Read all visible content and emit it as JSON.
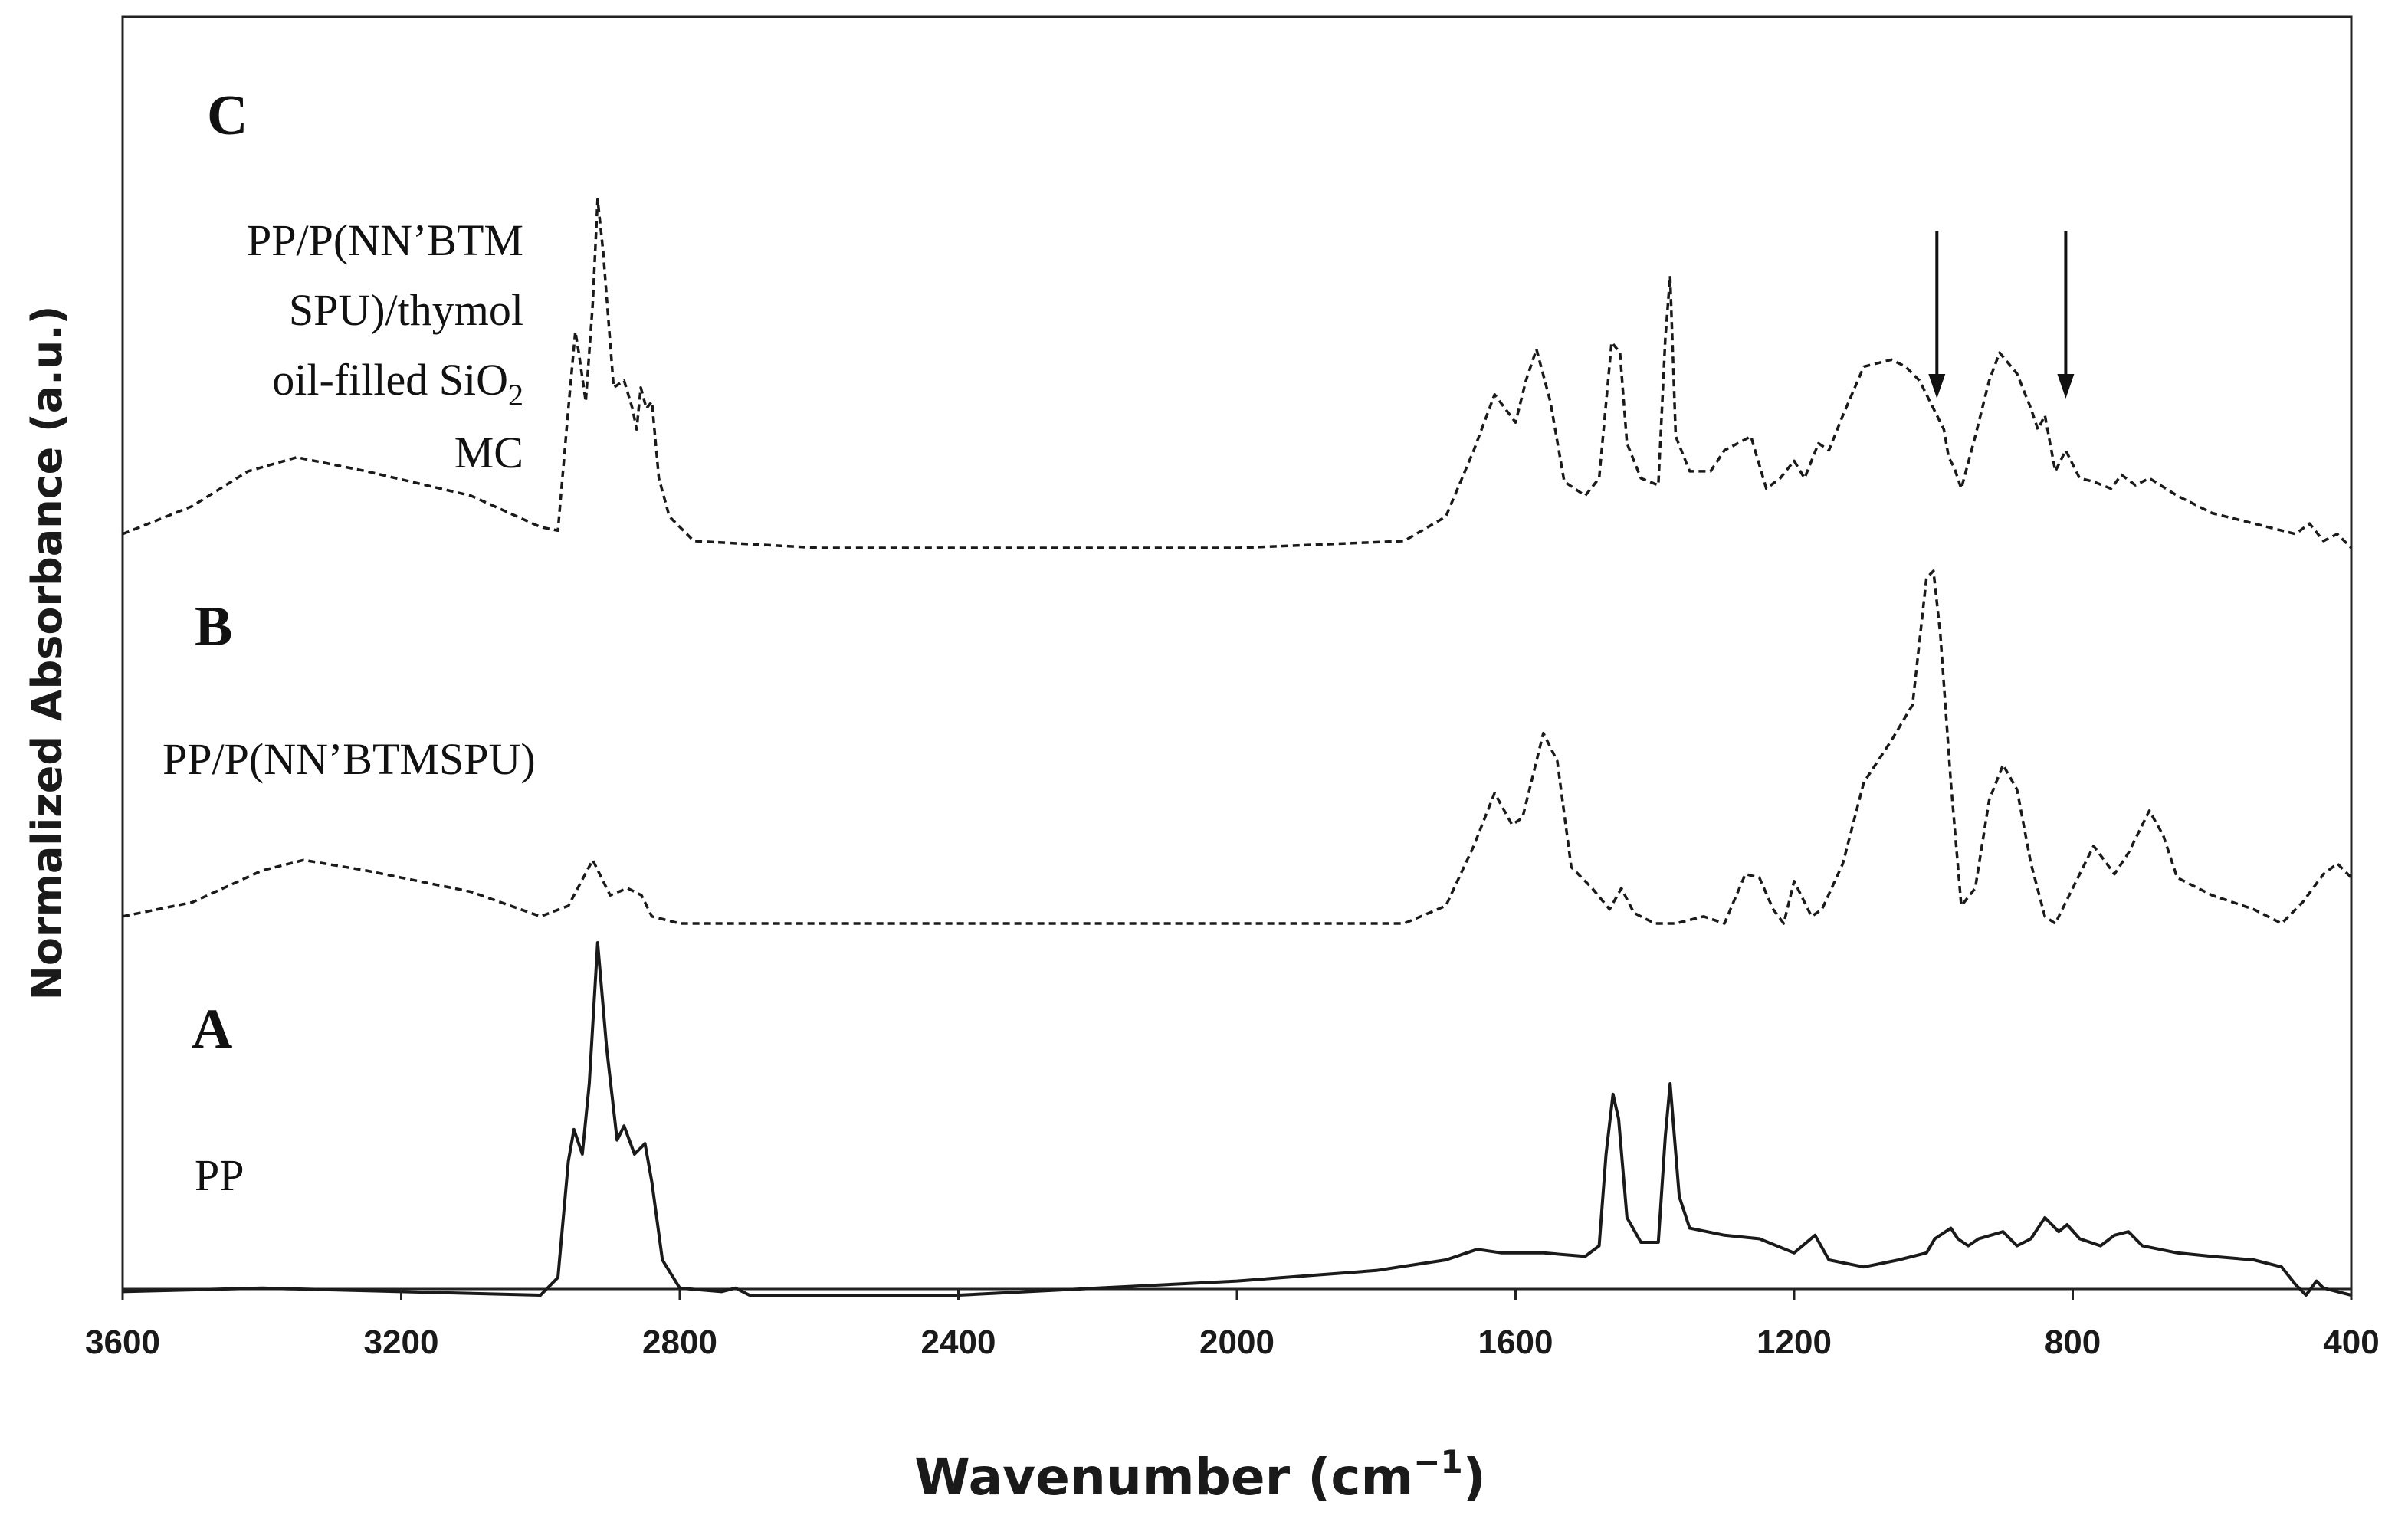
{
  "chart_data": {
    "type": "line",
    "title": "",
    "xlabel": "Wavenumber (cm⁻¹)",
    "xlabel_main": "Wavenumber (cm",
    "xlabel_sup": "−1",
    "xlabel_close": ")",
    "ylabel": "Normalized Absorbance (a.u.)",
    "xlim": [
      3600,
      400
    ],
    "x_reversed": true,
    "x_ticks": [
      3600,
      3200,
      2800,
      2400,
      2000,
      1600,
      1200,
      800,
      400
    ],
    "x_tick_labels": [
      "3600",
      "3200",
      "2800",
      "2400",
      "2000",
      "1600",
      "1200",
      "800",
      "400"
    ],
    "grid": false,
    "legend": "none",
    "arrows_at_wavenumber": [
      995,
      810
    ],
    "panels": {
      "C": {
        "letter": "C",
        "label_lines": [
          "PP/P(NN’BTM",
          "SPU)/thymol",
          "oil-filled SiO",
          "MC"
        ],
        "label_sub": "2",
        "style": "dashed"
      },
      "B": {
        "letter": "B",
        "label": "PP/P(NN’BTMSPU)",
        "style": "dashed"
      },
      "A": {
        "letter": "A",
        "label": "PP",
        "style": "solid"
      }
    },
    "series": [
      {
        "name": "C: PP/P(NN’BTMSPU)/thymol oil-filled SiO2 MC",
        "style": "dashed",
        "points": [
          [
            3600,
            0.04
          ],
          [
            3500,
            0.12
          ],
          [
            3420,
            0.22
          ],
          [
            3350,
            0.26
          ],
          [
            3250,
            0.22
          ],
          [
            3100,
            0.15
          ],
          [
            3000,
            0.06
          ],
          [
            2975,
            0.05
          ],
          [
            2960,
            0.4
          ],
          [
            2950,
            0.62
          ],
          [
            2945,
            0.56
          ],
          [
            2935,
            0.42
          ],
          [
            2925,
            0.7
          ],
          [
            2918,
            1.0
          ],
          [
            2910,
            0.85
          ],
          [
            2895,
            0.46
          ],
          [
            2880,
            0.48
          ],
          [
            2868,
            0.4
          ],
          [
            2862,
            0.34
          ],
          [
            2856,
            0.46
          ],
          [
            2848,
            0.4
          ],
          [
            2840,
            0.42
          ],
          [
            2830,
            0.2
          ],
          [
            2815,
            0.09
          ],
          [
            2780,
            0.02
          ],
          [
            2600,
            0.0
          ],
          [
            2000,
            0.0
          ],
          [
            1760,
            0.02
          ],
          [
            1700,
            0.09
          ],
          [
            1660,
            0.28
          ],
          [
            1630,
            0.44
          ],
          [
            1600,
            0.36
          ],
          [
            1585,
            0.48
          ],
          [
            1570,
            0.57
          ],
          [
            1550,
            0.42
          ],
          [
            1530,
            0.19
          ],
          [
            1500,
            0.15
          ],
          [
            1480,
            0.2
          ],
          [
            1462,
            0.59
          ],
          [
            1450,
            0.56
          ],
          [
            1440,
            0.3
          ],
          [
            1420,
            0.2
          ],
          [
            1395,
            0.18
          ],
          [
            1385,
            0.6
          ],
          [
            1378,
            0.78
          ],
          [
            1370,
            0.32
          ],
          [
            1350,
            0.22
          ],
          [
            1320,
            0.22
          ],
          [
            1300,
            0.28
          ],
          [
            1262,
            0.32
          ],
          [
            1240,
            0.17
          ],
          [
            1220,
            0.2
          ],
          [
            1200,
            0.25
          ],
          [
            1185,
            0.2
          ],
          [
            1165,
            0.3
          ],
          [
            1150,
            0.28
          ],
          [
            1130,
            0.38
          ],
          [
            1100,
            0.52
          ],
          [
            1060,
            0.54
          ],
          [
            1040,
            0.52
          ],
          [
            1020,
            0.48
          ],
          [
            1000,
            0.4
          ],
          [
            985,
            0.34
          ],
          [
            978,
            0.26
          ],
          [
            970,
            0.23
          ],
          [
            960,
            0.17
          ],
          [
            940,
            0.32
          ],
          [
            920,
            0.48
          ],
          [
            905,
            0.56
          ],
          [
            880,
            0.5
          ],
          [
            860,
            0.4
          ],
          [
            850,
            0.34
          ],
          [
            840,
            0.38
          ],
          [
            825,
            0.22
          ],
          [
            810,
            0.28
          ],
          [
            790,
            0.2
          ],
          [
            770,
            0.19
          ],
          [
            745,
            0.17
          ],
          [
            730,
            0.21
          ],
          [
            710,
            0.18
          ],
          [
            690,
            0.2
          ],
          [
            650,
            0.15
          ],
          [
            600,
            0.1
          ],
          [
            540,
            0.07
          ],
          [
            480,
            0.04
          ],
          [
            460,
            0.07
          ],
          [
            440,
            0.02
          ],
          [
            420,
            0.04
          ],
          [
            400,
            0.0
          ]
        ]
      },
      {
        "name": "B: PP/P(NN’BTMSPU)",
        "style": "dashed",
        "points": [
          [
            3600,
            0.02
          ],
          [
            3500,
            0.06
          ],
          [
            3400,
            0.15
          ],
          [
            3340,
            0.18
          ],
          [
            3250,
            0.15
          ],
          [
            3100,
            0.09
          ],
          [
            3000,
            0.02
          ],
          [
            2960,
            0.05
          ],
          [
            2925,
            0.18
          ],
          [
            2900,
            0.08
          ],
          [
            2875,
            0.1
          ],
          [
            2855,
            0.08
          ],
          [
            2840,
            0.02
          ],
          [
            2800,
            0.0
          ],
          [
            2400,
            0.0
          ],
          [
            2000,
            0.0
          ],
          [
            1760,
            0.0
          ],
          [
            1700,
            0.05
          ],
          [
            1660,
            0.22
          ],
          [
            1630,
            0.37
          ],
          [
            1605,
            0.28
          ],
          [
            1590,
            0.3
          ],
          [
            1560,
            0.54
          ],
          [
            1540,
            0.46
          ],
          [
            1520,
            0.16
          ],
          [
            1490,
            0.1
          ],
          [
            1465,
            0.04
          ],
          [
            1448,
            0.1
          ],
          [
            1430,
            0.03
          ],
          [
            1400,
            0.0
          ],
          [
            1370,
            0.0
          ],
          [
            1330,
            0.02
          ],
          [
            1300,
            0.0
          ],
          [
            1270,
            0.14
          ],
          [
            1250,
            0.13
          ],
          [
            1230,
            0.04
          ],
          [
            1215,
            0.0
          ],
          [
            1200,
            0.12
          ],
          [
            1190,
            0.08
          ],
          [
            1175,
            0.02
          ],
          [
            1160,
            0.04
          ],
          [
            1130,
            0.17
          ],
          [
            1100,
            0.4
          ],
          [
            1060,
            0.52
          ],
          [
            1030,
            0.62
          ],
          [
            1010,
            0.98
          ],
          [
            1000,
            1.0
          ],
          [
            990,
            0.82
          ],
          [
            975,
            0.4
          ],
          [
            960,
            0.05
          ],
          [
            940,
            0.1
          ],
          [
            920,
            0.35
          ],
          [
            900,
            0.45
          ],
          [
            880,
            0.38
          ],
          [
            860,
            0.17
          ],
          [
            840,
            0.02
          ],
          [
            825,
            0.0
          ],
          [
            800,
            0.1
          ],
          [
            770,
            0.22
          ],
          [
            740,
            0.14
          ],
          [
            720,
            0.2
          ],
          [
            690,
            0.32
          ],
          [
            670,
            0.25
          ],
          [
            650,
            0.13
          ],
          [
            600,
            0.08
          ],
          [
            540,
            0.04
          ],
          [
            500,
            0.0
          ],
          [
            470,
            0.06
          ],
          [
            440,
            0.14
          ],
          [
            420,
            0.17
          ],
          [
            400,
            0.13
          ]
        ]
      },
      {
        "name": "A: PP",
        "style": "solid",
        "points": [
          [
            3600,
            0.01
          ],
          [
            3400,
            0.02
          ],
          [
            3000,
            0.0
          ],
          [
            2975,
            0.05
          ],
          [
            2960,
            0.38
          ],
          [
            2952,
            0.47
          ],
          [
            2940,
            0.4
          ],
          [
            2930,
            0.6
          ],
          [
            2918,
            1.0
          ],
          [
            2905,
            0.7
          ],
          [
            2890,
            0.44
          ],
          [
            2880,
            0.48
          ],
          [
            2865,
            0.4
          ],
          [
            2850,
            0.43
          ],
          [
            2840,
            0.32
          ],
          [
            2825,
            0.1
          ],
          [
            2800,
            0.02
          ],
          [
            2740,
            0.01
          ],
          [
            2720,
            0.02
          ],
          [
            2700,
            0.0
          ],
          [
            2400,
            0.0
          ],
          [
            2200,
            0.02
          ],
          [
            2000,
            0.04
          ],
          [
            1800,
            0.07
          ],
          [
            1700,
            0.1
          ],
          [
            1655,
            0.13
          ],
          [
            1620,
            0.12
          ],
          [
            1560,
            0.12
          ],
          [
            1500,
            0.11
          ],
          [
            1480,
            0.14
          ],
          [
            1470,
            0.4
          ],
          [
            1460,
            0.57
          ],
          [
            1452,
            0.5
          ],
          [
            1440,
            0.22
          ],
          [
            1420,
            0.15
          ],
          [
            1395,
            0.15
          ],
          [
            1385,
            0.45
          ],
          [
            1378,
            0.6
          ],
          [
            1365,
            0.28
          ],
          [
            1350,
            0.19
          ],
          [
            1300,
            0.17
          ],
          [
            1250,
            0.16
          ],
          [
            1200,
            0.12
          ],
          [
            1170,
            0.17
          ],
          [
            1150,
            0.1
          ],
          [
            1100,
            0.08
          ],
          [
            1050,
            0.1
          ],
          [
            1010,
            0.12
          ],
          [
            998,
            0.16
          ],
          [
            975,
            0.19
          ],
          [
            965,
            0.16
          ],
          [
            950,
            0.14
          ],
          [
            935,
            0.16
          ],
          [
            900,
            0.18
          ],
          [
            880,
            0.14
          ],
          [
            860,
            0.16
          ],
          [
            840,
            0.22
          ],
          [
            820,
            0.18
          ],
          [
            808,
            0.2
          ],
          [
            790,
            0.16
          ],
          [
            760,
            0.14
          ],
          [
            740,
            0.17
          ],
          [
            720,
            0.18
          ],
          [
            700,
            0.14
          ],
          [
            650,
            0.12
          ],
          [
            600,
            0.11
          ],
          [
            540,
            0.1
          ],
          [
            500,
            0.08
          ],
          [
            480,
            0.03
          ],
          [
            465,
            0.0
          ],
          [
            450,
            0.04
          ],
          [
            440,
            0.02
          ],
          [
            420,
            0.01
          ],
          [
            400,
            0.0
          ]
        ]
      }
    ]
  }
}
